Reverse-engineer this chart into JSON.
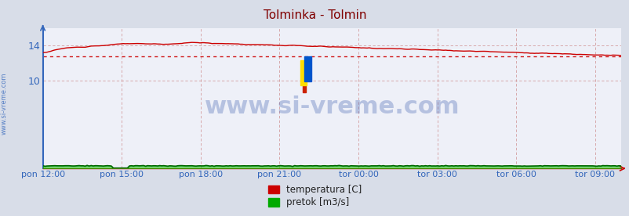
{
  "title": "Tolminka - Tolmin",
  "title_color": "#800000",
  "bg_color": "#d8dde8",
  "plot_bg_color": "#eef0f8",
  "x_labels": [
    "pon 12:00",
    "pon 15:00",
    "pon 18:00",
    "pon 21:00",
    "tor 00:00",
    "tor 03:00",
    "tor 06:00",
    "tor 09:00"
  ],
  "x_ticks_norm": [
    0.0,
    0.1365,
    0.273,
    0.4095,
    0.546,
    0.6825,
    0.819,
    0.9555
  ],
  "y_ticks": [
    10,
    14
  ],
  "y_label_color": "#3366bb",
  "axis_label_color": "#3366bb",
  "watermark_text": "www.si-vreme.com",
  "legend_items": [
    "temperatura [C]",
    "pretok [m3/s]"
  ],
  "legend_colors": [
    "#cc0000",
    "#00aa00"
  ],
  "grid_color_v": "#cc8888",
  "grid_color_h": "#cc8888",
  "temp_color": "#cc0000",
  "flow_color": "#00cc00",
  "flow_line_color": "#006600",
  "ylim": [
    0,
    16.0
  ],
  "xlim": [
    0,
    1
  ],
  "n_points": 288,
  "avg_line_y": 12.75,
  "avg_line_color": "#cc0000",
  "left_spine_color": "#3366bb",
  "bottom_spine_color": "#cc0000",
  "watermark_color": "#3355aa",
  "watermark_alpha": 0.3,
  "watermark_fontsize": 22,
  "side_label": "www.si-vreme.com",
  "side_label_color": "#3366bb"
}
